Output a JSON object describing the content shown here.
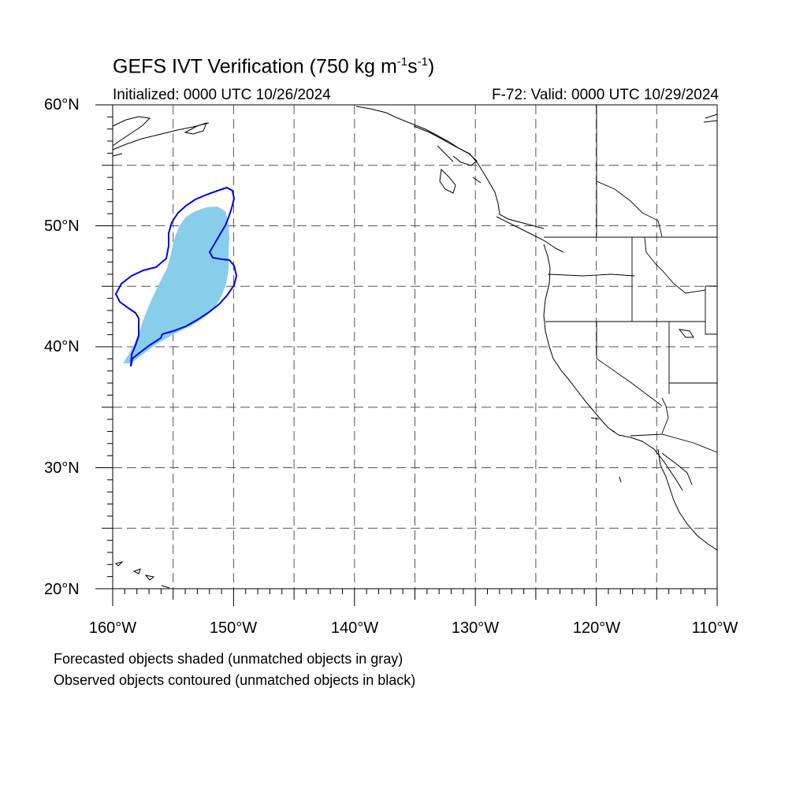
{
  "header": {
    "title_main": "GEFS IVT Verification (750 kg m",
    "title_exp1": "-1",
    "title_mid": "s",
    "title_exp2": "-1",
    "title_end": ")",
    "initialized": "Initialized: 0000 UTC 10/26/2024",
    "valid": "F-72: Valid: 0000 UTC 10/29/2024"
  },
  "axes": {
    "lat_labels": [
      "60°N",
      "50°N",
      "40°N",
      "30°N",
      "20°N"
    ],
    "lon_labels": [
      "160°W",
      "150°W",
      "140°W",
      "130°W",
      "120°W",
      "110°W"
    ],
    "lat_range": [
      20,
      60
    ],
    "lon_range": [
      -160,
      -110
    ],
    "grid": "dashed, every 5 degrees"
  },
  "legend": {
    "forecast_note": "Forecasted objects shaded (unmatched objects in gray)",
    "observed_note": "Observed objects contoured (unmatched objects in black)"
  },
  "colors": {
    "forecast_fill": "#87ceeb",
    "observed_contour": "#0000e6",
    "coastline": "#000000",
    "grid": "#555555"
  }
}
